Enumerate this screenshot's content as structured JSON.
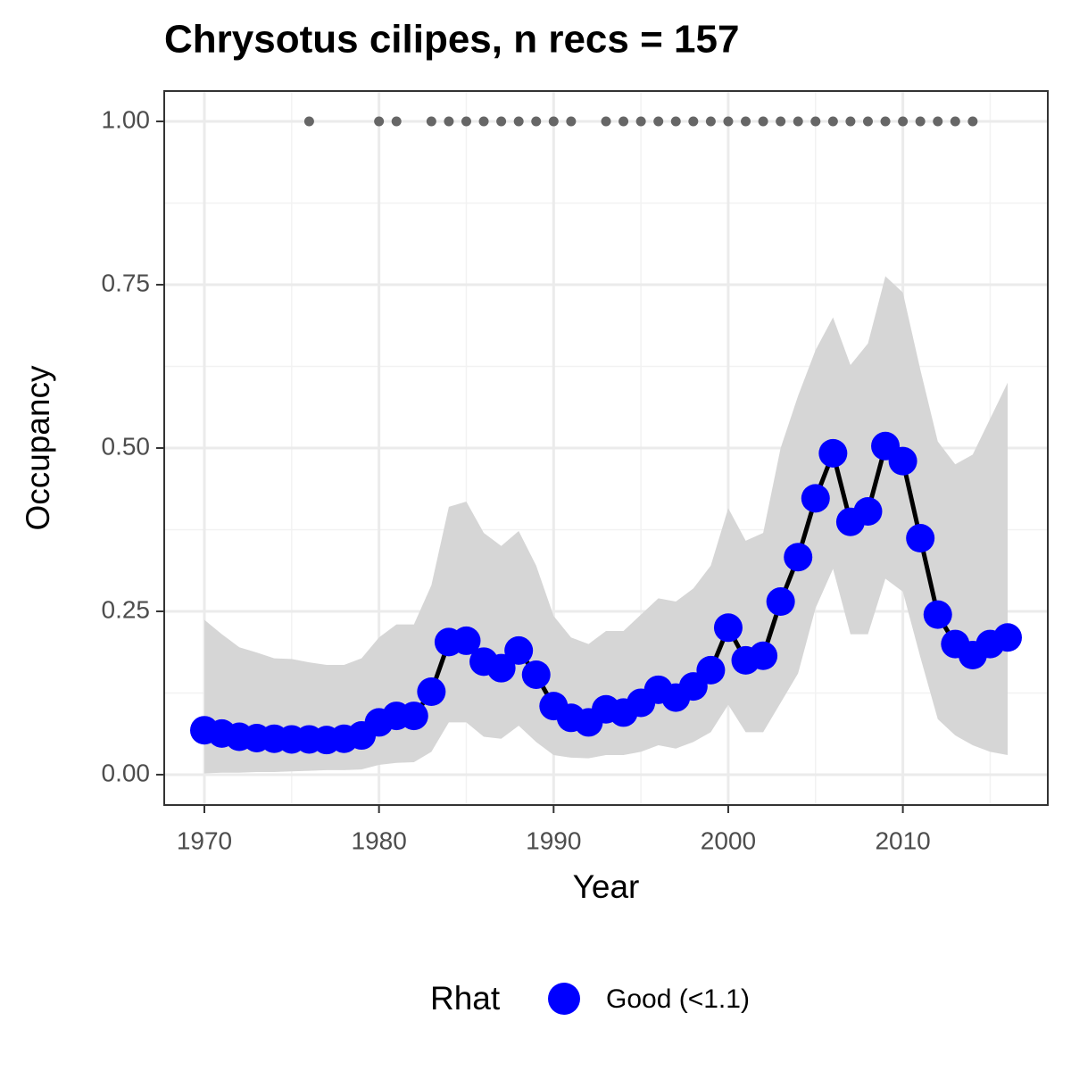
{
  "chart_data": {
    "type": "line",
    "title": "Chrysotus cilipes, n recs = 157",
    "x_label": "Year",
    "y_label": "Occupancy",
    "legend_title": "Rhat",
    "legend_position": "bottom",
    "grid": true,
    "xlim": [
      1967.7,
      2018.3
    ],
    "xticks": [
      1970,
      1980,
      1990,
      2000,
      2010
    ],
    "ylim": [
      -0.0465,
      1.0465
    ],
    "yticks": [
      {
        "value": 0,
        "label": "0.00"
      },
      {
        "value": 0.25,
        "label": "0.25"
      },
      {
        "value": 0.5,
        "label": "0.50"
      },
      {
        "value": 0.75,
        "label": "0.75"
      },
      {
        "value": 1,
        "label": "1.00"
      }
    ],
    "x": [
      1970,
      1971,
      1972,
      1973,
      1974,
      1975,
      1976,
      1977,
      1978,
      1979,
      1980,
      1981,
      1982,
      1983,
      1984,
      1985,
      1986,
      1987,
      1988,
      1989,
      1990,
      1991,
      1992,
      1993,
      1994,
      1995,
      1996,
      1997,
      1998,
      1999,
      2000,
      2001,
      2002,
      2003,
      2004,
      2005,
      2006,
      2007,
      2008,
      2009,
      2010,
      2011,
      2012,
      2013,
      2014,
      2015,
      2016
    ],
    "band_color": "#d6d6d6",
    "series": [
      {
        "name": "Good (<1.1)",
        "color": "#0000ff",
        "line_color": "#000000",
        "values": [
          0.068,
          0.063,
          0.058,
          0.056,
          0.055,
          0.054,
          0.054,
          0.053,
          0.055,
          0.06,
          0.08,
          0.09,
          0.09,
          0.127,
          0.203,
          0.205,
          0.173,
          0.163,
          0.19,
          0.153,
          0.105,
          0.087,
          0.08,
          0.1,
          0.095,
          0.11,
          0.13,
          0.118,
          0.135,
          0.16,
          0.225,
          0.175,
          0.182,
          0.265,
          0.333,
          0.423,
          0.492,
          0.387,
          0.403,
          0.503,
          0.48,
          0.362,
          0.245,
          0.2,
          0.183,
          0.2,
          0.21
        ],
        "upper": [
          0.237,
          0.215,
          0.195,
          0.187,
          0.178,
          0.177,
          0.172,
          0.168,
          0.168,
          0.178,
          0.21,
          0.23,
          0.23,
          0.29,
          0.41,
          0.418,
          0.37,
          0.35,
          0.373,
          0.32,
          0.243,
          0.21,
          0.2,
          0.22,
          0.22,
          0.245,
          0.27,
          0.265,
          0.285,
          0.32,
          0.408,
          0.358,
          0.37,
          0.5,
          0.58,
          0.65,
          0.7,
          0.627,
          0.66,
          0.763,
          0.738,
          0.62,
          0.51,
          0.475,
          0.49,
          0.545,
          0.6
        ],
        "lower": [
          0.002,
          0.003,
          0.003,
          0.004,
          0.004,
          0.005,
          0.006,
          0.007,
          0.007,
          0.008,
          0.015,
          0.018,
          0.019,
          0.035,
          0.08,
          0.08,
          0.058,
          0.055,
          0.075,
          0.05,
          0.03,
          0.026,
          0.025,
          0.03,
          0.03,
          0.035,
          0.045,
          0.04,
          0.05,
          0.065,
          0.107,
          0.065,
          0.065,
          0.11,
          0.155,
          0.255,
          0.315,
          0.215,
          0.215,
          0.3,
          0.28,
          0.18,
          0.085,
          0.06,
          0.045,
          0.035,
          0.03
        ]
      }
    ],
    "records": {
      "color": "#666666",
      "x": [
        1976,
        1980,
        1981,
        1983,
        1984,
        1985,
        1986,
        1987,
        1988,
        1989,
        1990,
        1991,
        1993,
        1994,
        1995,
        1996,
        1997,
        1998,
        1999,
        2000,
        2001,
        2002,
        2003,
        2004,
        2005,
        2006,
        2007,
        2008,
        2009,
        2010,
        2011,
        2012,
        2013,
        2014
      ],
      "values": [
        1,
        1,
        1,
        1,
        1,
        1,
        1,
        1,
        1,
        1,
        1,
        1,
        1,
        1,
        1,
        1,
        1,
        1,
        1,
        1,
        1,
        1,
        1,
        1,
        1,
        1,
        1,
        1,
        1,
        1,
        1,
        1,
        1,
        1
      ]
    }
  }
}
